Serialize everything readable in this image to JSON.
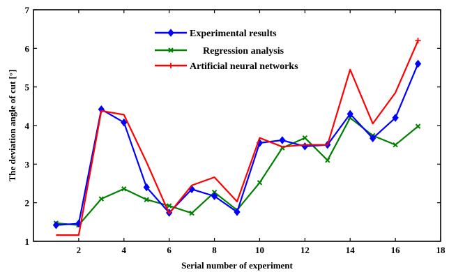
{
  "chart_data": {
    "type": "line",
    "title": "",
    "xlabel": "Serial number of experiment",
    "ylabel": "The deviation angle of cut [°]",
    "xlim": [
      0,
      18
    ],
    "ylim": [
      1,
      7
    ],
    "xticks": [
      2,
      4,
      6,
      8,
      10,
      12,
      14,
      16,
      18
    ],
    "yticks": [
      1,
      2,
      3,
      4,
      5,
      6,
      7
    ],
    "grid": false,
    "legend_position": "top-center",
    "x": [
      1,
      2,
      3,
      4,
      5,
      6,
      7,
      8,
      9,
      10,
      11,
      12,
      13,
      14,
      15,
      16,
      17
    ],
    "series": [
      {
        "name": "Experimental results",
        "color": "#0000ff",
        "marker": "diamond",
        "values": [
          1.42,
          1.46,
          4.42,
          4.08,
          2.4,
          1.74,
          2.35,
          2.17,
          1.76,
          3.55,
          3.62,
          3.46,
          3.5,
          4.3,
          3.67,
          4.2,
          5.6
        ]
      },
      {
        "name": "Regression analysis",
        "color": "#008000",
        "marker": "x",
        "values": [
          1.47,
          1.42,
          2.1,
          2.36,
          2.08,
          1.92,
          1.73,
          2.27,
          1.81,
          2.52,
          3.42,
          3.68,
          3.1,
          4.2,
          3.74,
          3.5,
          3.98
        ]
      },
      {
        "name": "Artificial neural networks",
        "color": "#ff0000",
        "marker": "plus",
        "values": [
          1.16,
          1.16,
          4.38,
          4.28,
          3.05,
          1.72,
          2.45,
          2.66,
          2.03,
          3.68,
          3.45,
          3.5,
          3.5,
          5.45,
          4.05,
          4.85,
          6.2
        ]
      }
    ]
  }
}
